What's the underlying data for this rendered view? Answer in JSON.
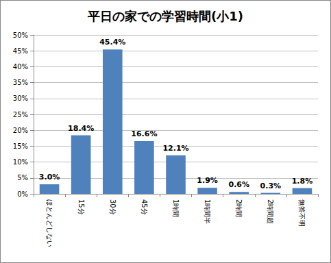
{
  "chart_data": {
    "type": "bar",
    "title": "平日の家での学習時間(小1)",
    "categories": [
      "ほとんどしない",
      "15分",
      "30分",
      "45分",
      "1時間",
      "1時間半",
      "2時間",
      "2時間超",
      "無答不明"
    ],
    "values": [
      3.0,
      18.4,
      45.4,
      16.6,
      12.1,
      1.9,
      0.6,
      0.3,
      1.8
    ],
    "value_labels": [
      "3.0%",
      "18.4%",
      "45.4%",
      "16.6%",
      "12.1%",
      "1.9%",
      "0.6%",
      "0.3%",
      "1.8%"
    ],
    "color": "#4f81bd",
    "ylim": [
      0,
      50
    ],
    "yticks": [
      {
        "value": 0,
        "label": "0%"
      },
      {
        "value": 5,
        "label": "5%"
      },
      {
        "value": 10,
        "label": "10%"
      },
      {
        "value": 15,
        "label": "15%"
      },
      {
        "value": 20,
        "label": "20%"
      },
      {
        "value": 25,
        "label": "25%"
      },
      {
        "value": 30,
        "label": "30%"
      },
      {
        "value": 35,
        "label": "35%"
      },
      {
        "value": 40,
        "label": "40%"
      },
      {
        "value": 45,
        "label": "45%"
      },
      {
        "value": 50,
        "label": "50%"
      }
    ],
    "grid": true,
    "data_labels": true
  }
}
